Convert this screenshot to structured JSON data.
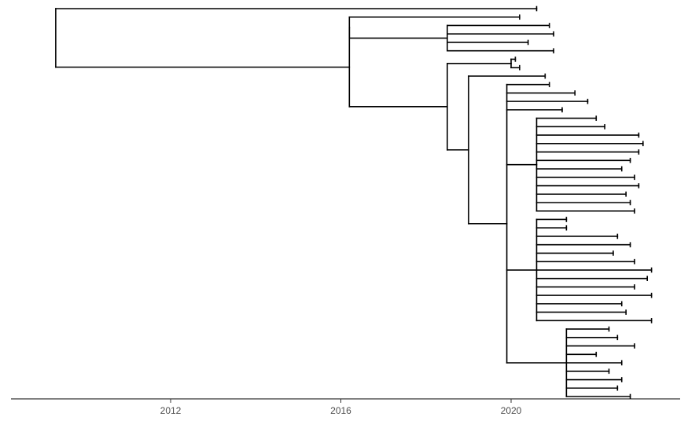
{
  "chart_data": {
    "type": "phylogenetic-tree",
    "title": "",
    "xlabel": "",
    "ylabel": "",
    "x_axis": {
      "ticks": [
        2012,
        2016,
        2020
      ],
      "tick_labels": [
        "2012",
        "2016",
        "2020"
      ],
      "range": [
        2009.3,
        2023.9
      ]
    },
    "grid": false,
    "legend": "none",
    "root_date": 2009.3,
    "tree": {
      "t": 2009.3,
      "children": [
        {
          "t": 2020.6
        },
        {
          "t": 2016.2,
          "children": [
            {
              "t": 2016.2,
              "children": [
                {
                  "t": 2020.2
                },
                {
                  "t": 2018.5,
                  "children": [
                    {
                      "t": 2020.9
                    },
                    {
                      "t": 2021.0
                    },
                    {
                      "t": 2020.4
                    },
                    {
                      "t": 2021.0
                    }
                  ]
                }
              ]
            },
            {
              "t": 2018.5,
              "children": [
                {
                  "t": 2020.0,
                  "children": [
                    {
                      "t": 2020.1
                    },
                    {
                      "t": 2020.2
                    }
                  ]
                },
                {
                  "t": 2019.0,
                  "children": [
                    {
                      "t": 2020.8
                    },
                    {
                      "t": 2019.9,
                      "children": [
                        {
                          "t": 2020.9
                        },
                        {
                          "t": 2021.5
                        },
                        {
                          "t": 2021.8
                        },
                        {
                          "t": 2021.2
                        },
                        {
                          "t": 2020.6,
                          "children": [
                            {
                              "t": 2022.0
                            },
                            {
                              "t": 2022.2
                            },
                            {
                              "t": 2023.0
                            },
                            {
                              "t": 2023.1
                            },
                            {
                              "t": 2023.0
                            },
                            {
                              "t": 2022.8
                            },
                            {
                              "t": 2022.6
                            },
                            {
                              "t": 2022.9
                            },
                            {
                              "t": 2023.0
                            },
                            {
                              "t": 2022.7
                            },
                            {
                              "t": 2022.8
                            },
                            {
                              "t": 2022.9
                            }
                          ]
                        },
                        {
                          "t": 2020.6,
                          "children": [
                            {
                              "t": 2021.3
                            },
                            {
                              "t": 2021.3
                            },
                            {
                              "t": 2022.5
                            },
                            {
                              "t": 2022.8
                            },
                            {
                              "t": 2022.4
                            },
                            {
                              "t": 2022.9
                            },
                            {
                              "t": 2023.3
                            },
                            {
                              "t": 2023.2
                            },
                            {
                              "t": 2022.9
                            },
                            {
                              "t": 2023.3
                            },
                            {
                              "t": 2022.6
                            },
                            {
                              "t": 2022.7
                            },
                            {
                              "t": 2023.3
                            }
                          ]
                        },
                        {
                          "t": 2021.3,
                          "children": [
                            {
                              "t": 2022.3
                            },
                            {
                              "t": 2022.5
                            },
                            {
                              "t": 2022.9
                            },
                            {
                              "t": 2022.0
                            },
                            {
                              "t": 2022.6
                            },
                            {
                              "t": 2022.3
                            },
                            {
                              "t": 2022.6
                            },
                            {
                              "t": 2022.5
                            },
                            {
                              "t": 2022.8
                            }
                          ]
                        }
                      ]
                    }
                  ]
                }
              ]
            }
          ]
        }
      ]
    }
  }
}
